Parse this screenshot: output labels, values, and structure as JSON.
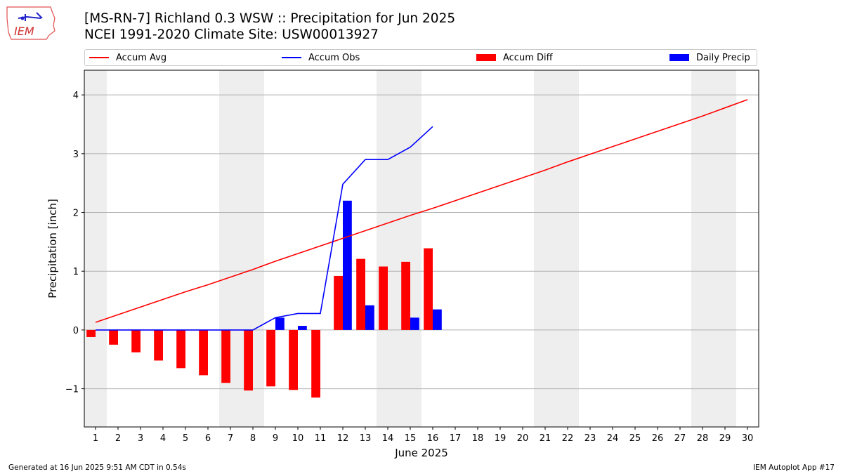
{
  "header": {
    "title_line1": "[MS-RN-7] Richland 0.3 WSW :: Precipitation for Jun 2025",
    "title_line2": "NCEI 1991-2020 Climate Site: USW00013927",
    "logo_text": "IEM"
  },
  "footer": {
    "generated": "Generated at 16 Jun 2025 9:51 AM CDT in 0.54s",
    "app": "IEM Autoplot App #17"
  },
  "colors": {
    "avg": "#ff0000",
    "obs": "#0000ff",
    "diff": "#ff0000",
    "daily": "#0000ff",
    "weekend_band": "#eeeeee",
    "grid": "#b0b0b0"
  },
  "chart_data": {
    "type": "bar",
    "xlabel": "June 2025",
    "ylabel": "Precipitation [inch]",
    "xlim": [
      0.5,
      30.5
    ],
    "ylim": [
      -1.65,
      4.42
    ],
    "yticks": [
      -1,
      0,
      1,
      2,
      3,
      4
    ],
    "ytick_labels": [
      "−1",
      "0",
      "1",
      "2",
      "3",
      "4"
    ],
    "grid": "y",
    "legend_placement": "top, above plot",
    "days": [
      1,
      2,
      3,
      4,
      5,
      6,
      7,
      8,
      9,
      10,
      11,
      12,
      13,
      14,
      15,
      16,
      17,
      18,
      19,
      20,
      21,
      22,
      23,
      24,
      25,
      26,
      27,
      28,
      29,
      30
    ],
    "weekend_bands": [
      [
        0.5,
        1.5
      ],
      [
        6.5,
        8.5
      ],
      [
        13.5,
        15.5
      ],
      [
        20.5,
        22.5
      ],
      [
        27.5,
        29.5
      ]
    ],
    "series": [
      {
        "name": "Accum Avg",
        "kind": "line",
        "x": [
          1,
          2,
          3,
          4,
          5,
          6,
          7,
          8,
          9,
          10,
          11,
          12,
          13,
          14,
          15,
          16,
          17,
          18,
          19,
          20,
          21,
          22,
          23,
          24,
          25,
          26,
          27,
          28,
          29,
          30
        ],
        "values": [
          0.13,
          0.26,
          0.39,
          0.52,
          0.65,
          0.77,
          0.9,
          1.03,
          1.17,
          1.3,
          1.43,
          1.56,
          1.69,
          1.82,
          1.95,
          2.07,
          2.2,
          2.33,
          2.46,
          2.59,
          2.72,
          2.86,
          2.99,
          3.12,
          3.25,
          3.38,
          3.51,
          3.64,
          3.78,
          3.92
        ]
      },
      {
        "name": "Accum Obs",
        "kind": "line",
        "x": [
          1,
          2,
          3,
          4,
          5,
          6,
          7,
          8,
          9,
          10,
          11,
          12,
          13,
          14,
          15,
          16
        ],
        "values": [
          0,
          0,
          0,
          0,
          0,
          0,
          0,
          0,
          0.21,
          0.28,
          0.28,
          2.48,
          2.9,
          2.9,
          3.11,
          3.46
        ]
      },
      {
        "name": "Accum Diff",
        "kind": "bar",
        "x": [
          1,
          2,
          3,
          4,
          5,
          6,
          7,
          8,
          9,
          10,
          11,
          12,
          13,
          14,
          15,
          16
        ],
        "values": [
          -0.12,
          -0.25,
          -0.38,
          -0.52,
          -0.65,
          -0.77,
          -0.9,
          -1.03,
          -0.96,
          -1.02,
          -1.15,
          0.92,
          1.21,
          1.08,
          1.16,
          1.39
        ]
      },
      {
        "name": "Daily Precip",
        "kind": "bar",
        "x": [
          1,
          2,
          3,
          4,
          5,
          6,
          7,
          8,
          9,
          10,
          11,
          12,
          13,
          14,
          15,
          16
        ],
        "values": [
          0,
          0,
          0,
          0,
          0,
          0,
          0,
          0,
          0.21,
          0.07,
          0,
          2.2,
          0.42,
          0,
          0.21,
          0.35
        ]
      }
    ]
  }
}
